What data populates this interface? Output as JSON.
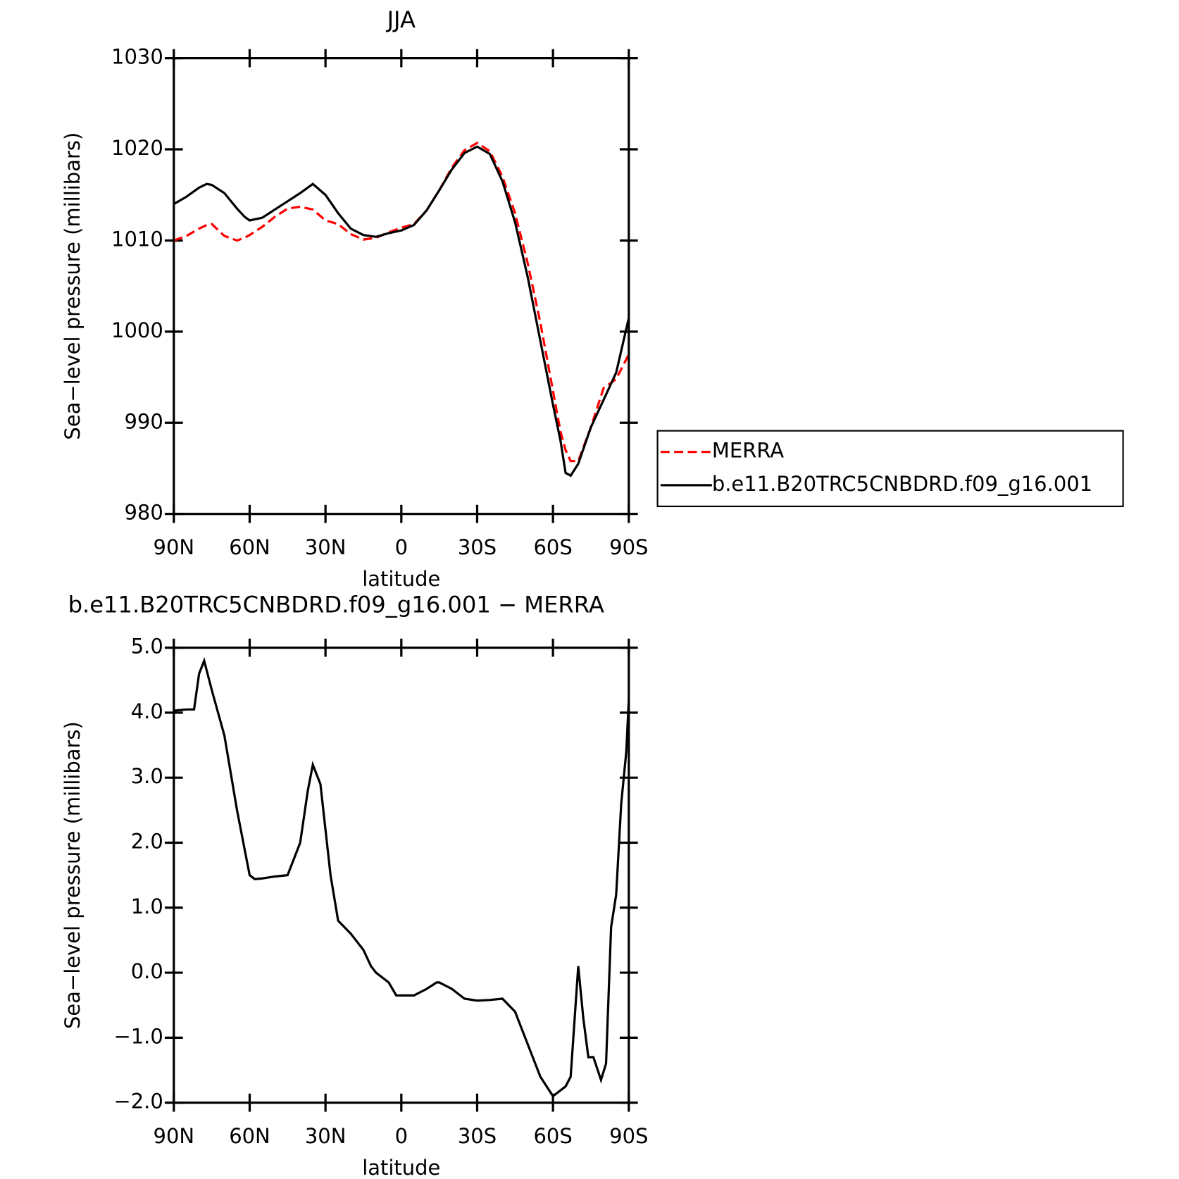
{
  "chart_data": [
    {
      "type": "line",
      "title": "JJA",
      "xlabel": "latitude",
      "ylabel": "Sea−level pressure (millibars)",
      "legend": "right",
      "x": [
        90,
        85,
        80,
        77,
        75,
        70,
        65,
        62,
        60,
        55,
        50,
        45,
        40,
        35,
        30,
        25,
        20,
        15,
        10,
        5,
        0,
        -5,
        -10,
        -15,
        -20,
        -25,
        -30,
        -35,
        -40,
        -45,
        -50,
        -55,
        -60,
        -63,
        -65,
        -67,
        -70,
        -75,
        -80,
        -85,
        -90
      ],
      "series": [
        {
          "name": "MERRA",
          "color": "#ff0000",
          "linestyle": "dashed",
          "values": [
            1010,
            1010.5,
            1011.3,
            1011.7,
            1011.8,
            1010.5,
            1010,
            1010.3,
            1010.6,
            1011.5,
            1012.6,
            1013.5,
            1013.7,
            1013.4,
            1012.2,
            1011.8,
            1010.7,
            1010.1,
            1010.3,
            1010.9,
            1011.4,
            1011.8,
            1013.3,
            1015.5,
            1018,
            1019.9,
            1020.7,
            1019.8,
            1017,
            1013,
            1007.5,
            1001,
            993.5,
            989,
            987,
            985.8,
            985.8,
            989.5,
            993.8,
            994.8,
            997.5
          ]
        },
        {
          "name": "b.e11.B20TRC5CNBDRD.f09_g16.001",
          "color": "#000000",
          "linestyle": "solid",
          "values": [
            1014,
            1014.8,
            1015.8,
            1016.2,
            1016.1,
            1015.2,
            1013.5,
            1012.6,
            1012.2,
            1012.5,
            1013.4,
            1014.3,
            1015.2,
            1016.2,
            1015,
            1013,
            1011.3,
            1010.6,
            1010.4,
            1010.8,
            1011.1,
            1011.7,
            1013.3,
            1015.5,
            1017.8,
            1019.6,
            1020.3,
            1019.5,
            1016.5,
            1012,
            1006,
            999,
            992,
            988,
            984.5,
            984.2,
            985.5,
            989.5,
            992.5,
            995.5,
            1001.5
          ]
        }
      ],
      "xlim": [
        90,
        -90
      ],
      "xticks": [
        {
          "value": 90,
          "label": "90N"
        },
        {
          "value": 60,
          "label": "60N"
        },
        {
          "value": 30,
          "label": "30N"
        },
        0,
        {
          "value": -30,
          "label": "30S"
        },
        {
          "value": -60,
          "label": "60S"
        },
        {
          "value": -90,
          "label": "90S"
        }
      ],
      "ylim": [
        980,
        1030
      ],
      "yticks": [
        980,
        990,
        1000,
        1010,
        1020,
        1030
      ],
      "grid": false
    },
    {
      "type": "line",
      "title": "b.e11.B20TRC5CNBDRD.f09_g16.001 − MERRA",
      "xlabel": "latitude",
      "ylabel": "Sea−level pressure (millibars)",
      "x": [
        90,
        85,
        82,
        80,
        78,
        75,
        70,
        65,
        60,
        58,
        55,
        50,
        45,
        43,
        40,
        37,
        35,
        32,
        30,
        28,
        25,
        20,
        15,
        12,
        10,
        5,
        2,
        0,
        -5,
        -10,
        -14,
        -15,
        -20,
        -25,
        -30,
        -35,
        -40,
        -45,
        -50,
        -55,
        -60,
        -65,
        -67,
        -70,
        -72,
        -74,
        -76,
        -79,
        -81,
        -83,
        -85,
        -87,
        -89,
        -90
      ],
      "series": [
        {
          "name": null,
          "color": "#000000",
          "linestyle": "solid",
          "values": [
            4.03,
            4.05,
            4.05,
            4.6,
            4.8,
            4.35,
            3.65,
            2.5,
            1.5,
            1.44,
            1.45,
            1.48,
            1.5,
            1.7,
            2.0,
            2.8,
            3.2,
            2.9,
            2.2,
            1.5,
            0.8,
            0.6,
            0.35,
            0.1,
            0,
            -0.15,
            -0.35,
            -0.35,
            -0.35,
            -0.25,
            -0.15,
            -0.15,
            -0.25,
            -0.4,
            -0.43,
            -0.42,
            -0.4,
            -0.6,
            -1.1,
            -1.6,
            -1.9,
            -1.75,
            -1.6,
            0.1,
            -0.7,
            -1.3,
            -1.3,
            -1.65,
            -1.4,
            0.7,
            1.2,
            2.6,
            3.4,
            4.2
          ]
        }
      ],
      "xlim": [
        90,
        -90
      ],
      "xticks": [
        {
          "value": 90,
          "label": "90N"
        },
        {
          "value": 60,
          "label": "60N"
        },
        {
          "value": 30,
          "label": "30N"
        },
        0,
        {
          "value": -30,
          "label": "30S"
        },
        {
          "value": -60,
          "label": "60S"
        },
        {
          "value": -90,
          "label": "90S"
        }
      ],
      "ylim": [
        -2,
        5
      ],
      "yticks": [
        {
          "value": -2,
          "label": "−2.0"
        },
        {
          "value": -1,
          "label": "−1.0"
        },
        {
          "value": 0,
          "label": "0.0"
        },
        {
          "value": 1,
          "label": "1.0"
        },
        {
          "value": 2,
          "label": "2.0"
        },
        {
          "value": 3,
          "label": "3.0"
        },
        {
          "value": 4,
          "label": "4.0"
        },
        {
          "value": 5,
          "label": "5.0"
        }
      ],
      "grid": false
    }
  ]
}
